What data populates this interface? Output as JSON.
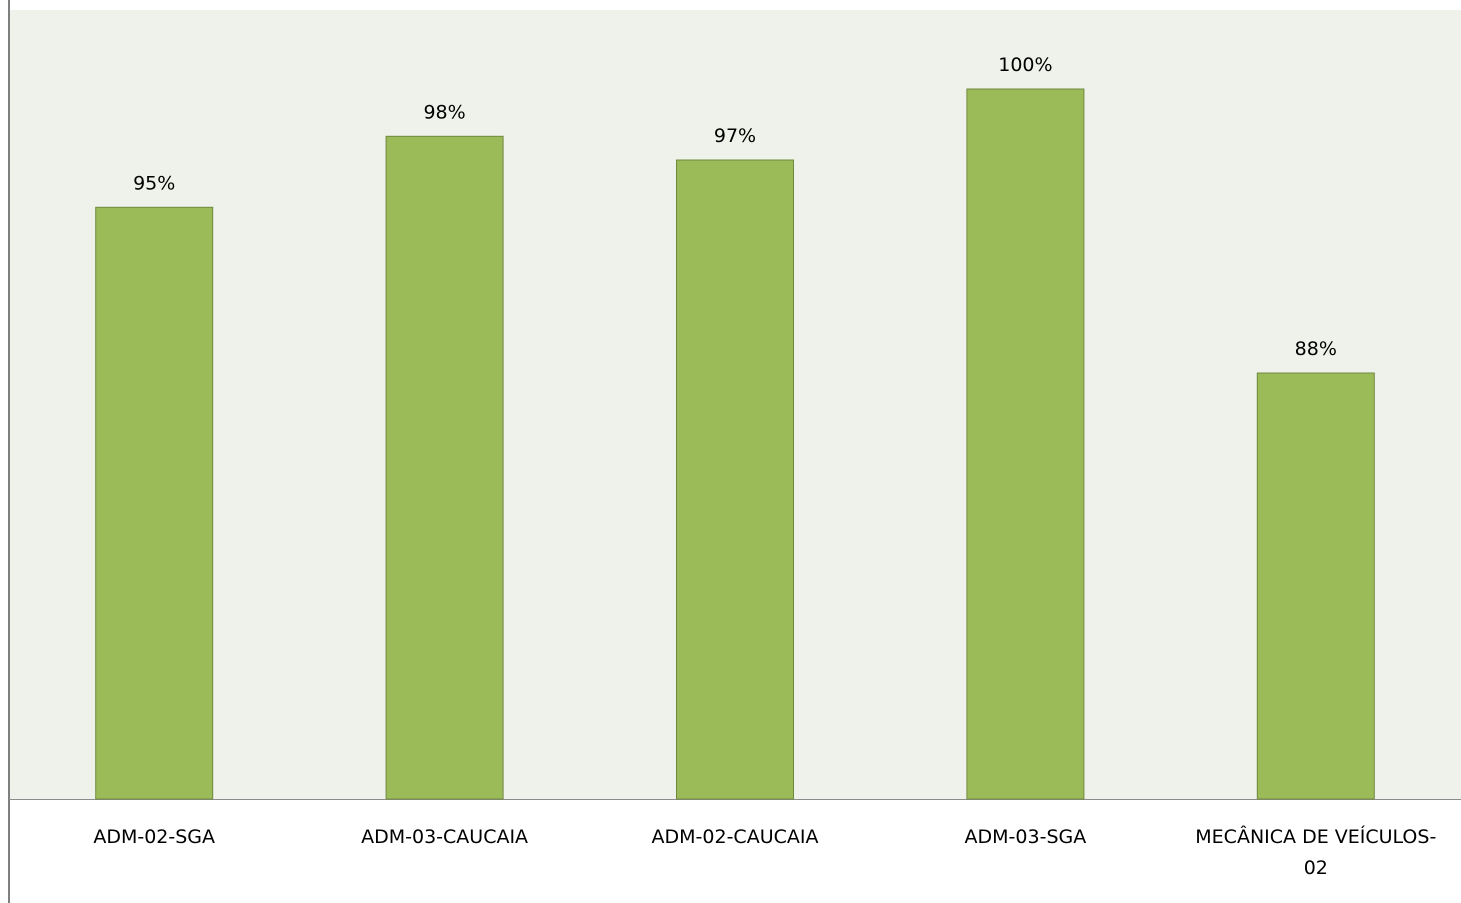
{
  "chart_data": {
    "type": "bar",
    "categories": [
      "ADM-02-SGA",
      "ADM-03-CAUCAIA",
      "ADM-02-CAUCAIA",
      "ADM-03-SGA",
      "MECÂNICA DE VEÍCULOS-02"
    ],
    "category_display_lines": [
      [
        "ADM-02-SGA"
      ],
      [
        "ADM-03-CAUCAIA"
      ],
      [
        "ADM-02-CAUCAIA"
      ],
      [
        "ADM-03-SGA"
      ],
      [
        "MECÂNICA DE VEÍCULOS-",
        "02"
      ]
    ],
    "values": [
      95,
      98,
      97,
      100,
      88
    ],
    "data_labels": [
      "95%",
      "98%",
      "97%",
      "100%",
      "88%"
    ],
    "title": "",
    "xlabel": "",
    "ylabel": "",
    "ylim": [
      70,
      100
    ],
    "grid": false,
    "legend": "none",
    "colors": {
      "bar_fill": "#9bbb59",
      "bar_stroke": "#71893f",
      "plot_background": "#eff2ea"
    }
  }
}
